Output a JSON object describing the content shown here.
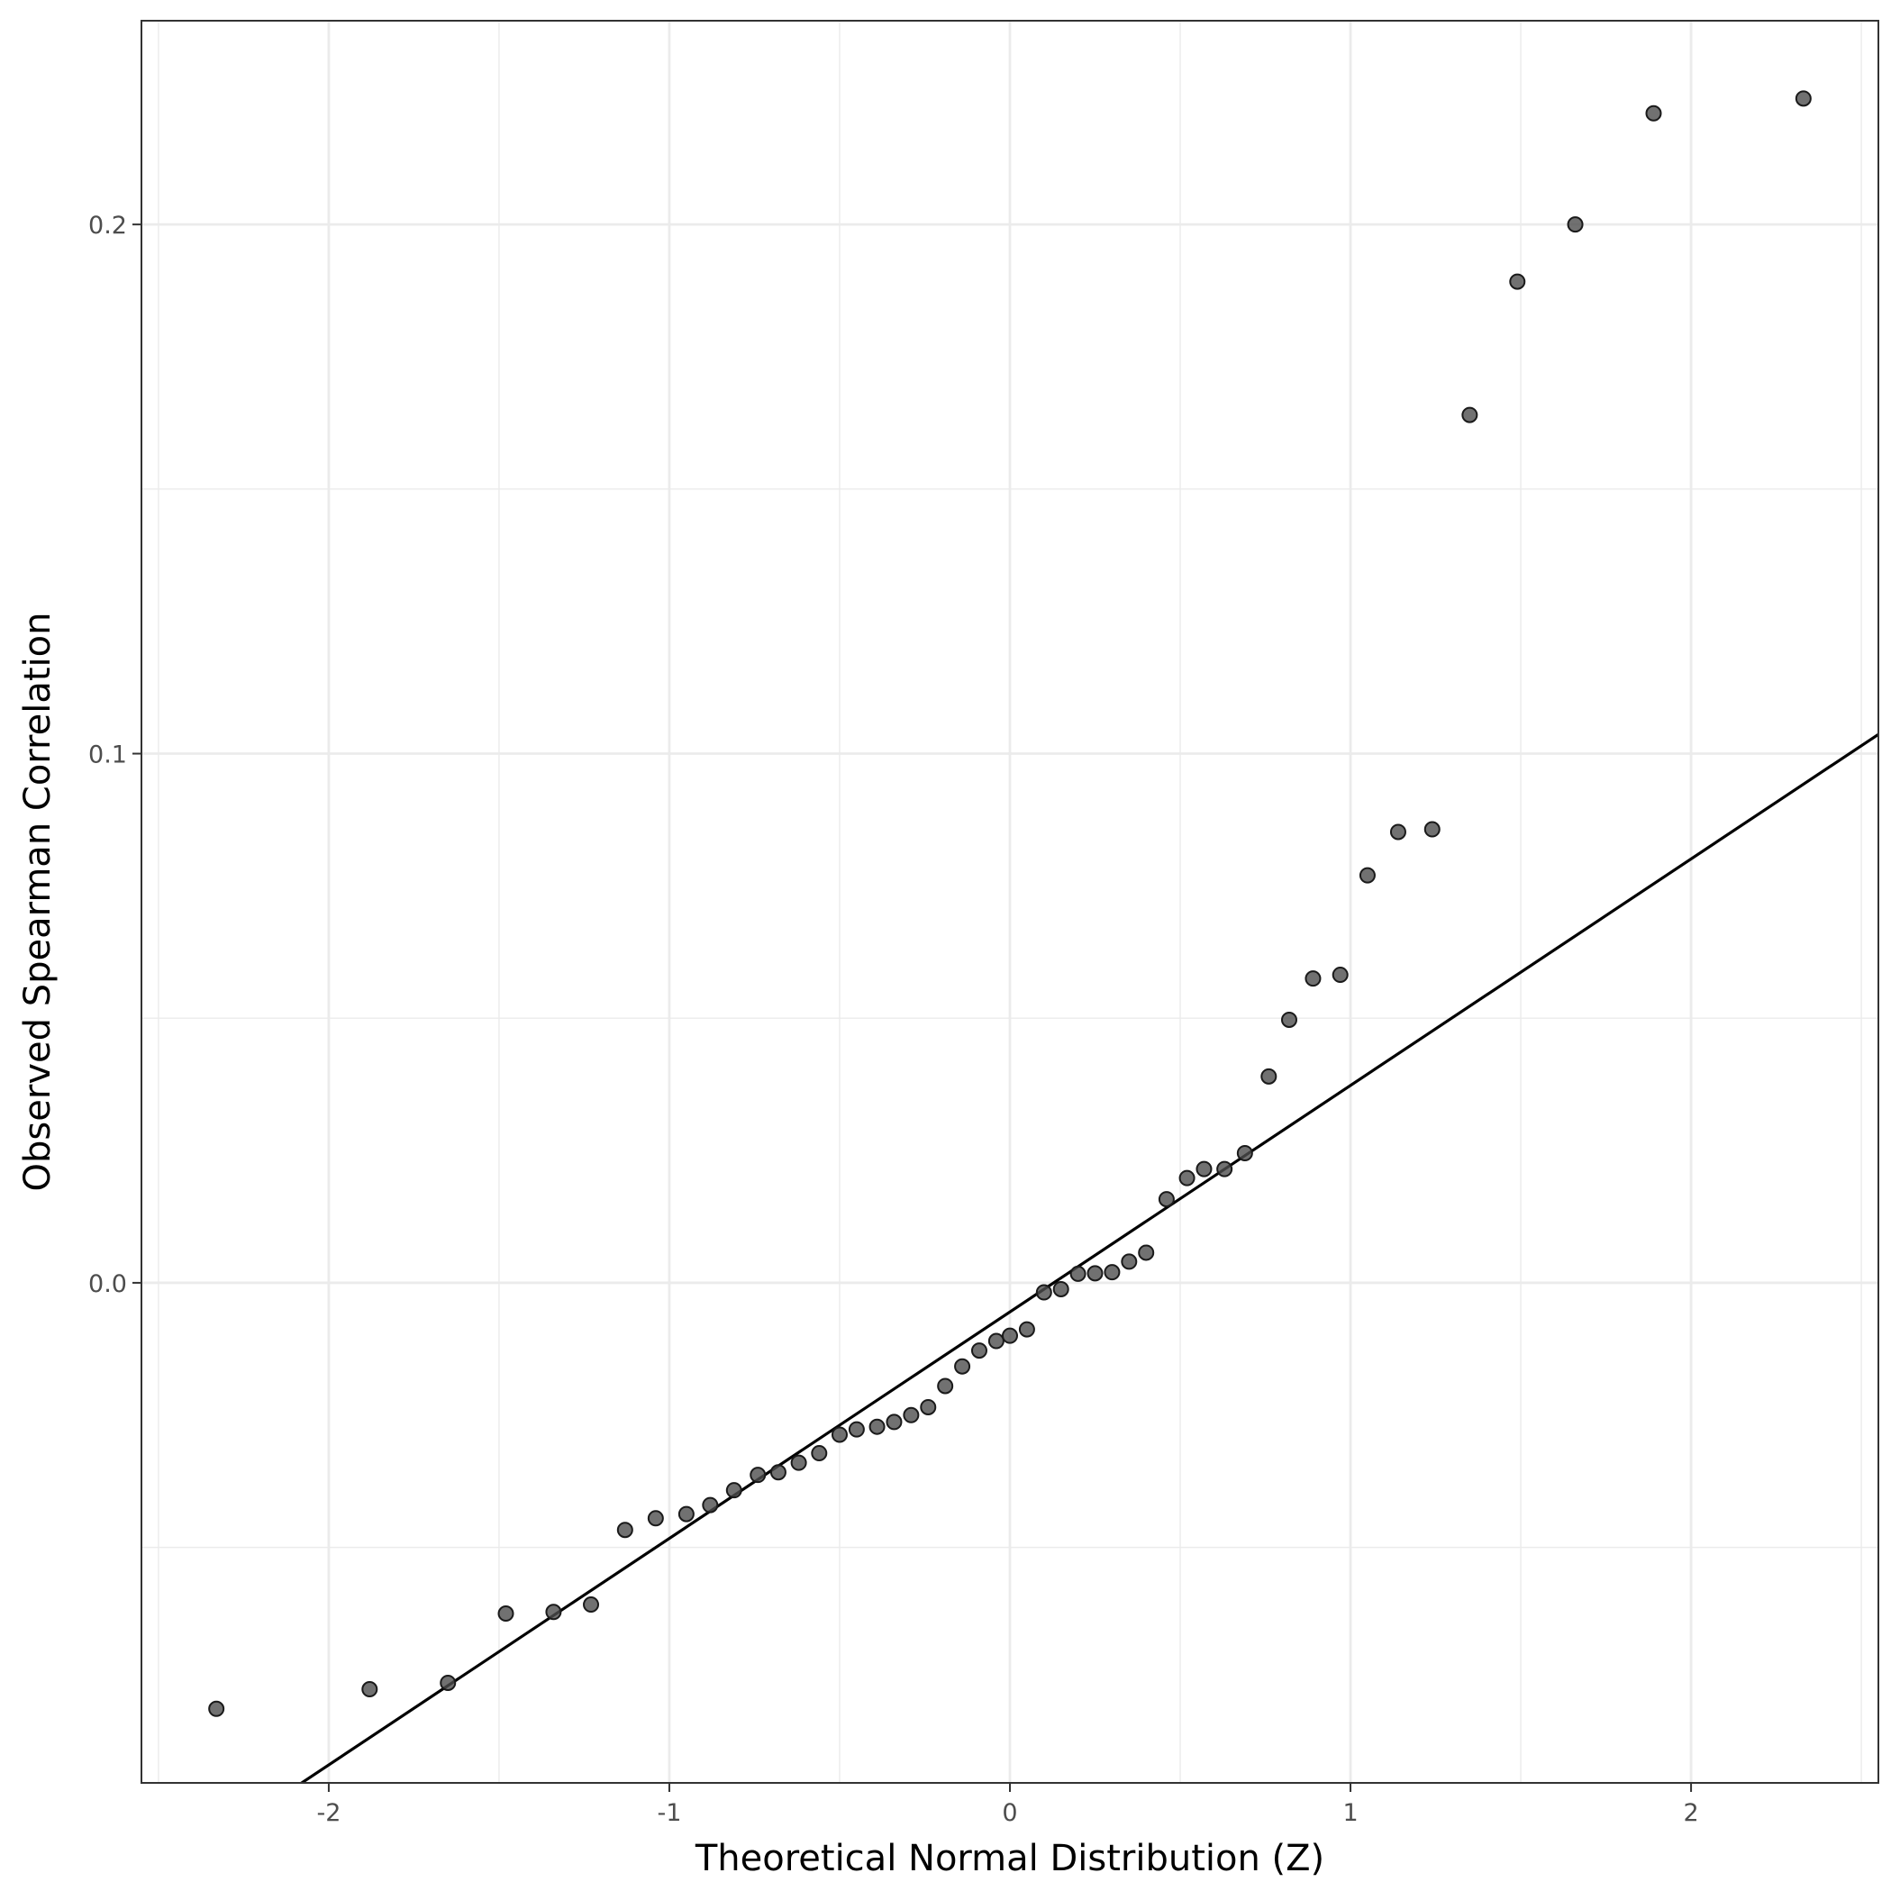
{
  "chart_data": {
    "type": "scatter",
    "title": "",
    "xlabel": "Theoretical Normal Distribution (Z)",
    "ylabel": "Observed Spearman Correlation",
    "xlim": [
      -2.55,
      2.55
    ],
    "ylim": [
      -0.0945,
      0.2385
    ],
    "x_ticks": [
      -2,
      -1,
      0,
      1,
      2
    ],
    "x_tick_labels": [
      "-2",
      "-1",
      "0",
      "1",
      "2"
    ],
    "y_ticks": [
      0.0,
      0.1,
      0.2
    ],
    "y_tick_labels": [
      "0.0",
      "0.1",
      "0.2"
    ],
    "grid": true,
    "legend": "none",
    "point_color": "#4d4d4d",
    "line_color": "#000000",
    "reference_line": {
      "intercept": -0.0055,
      "slope": 0.0428
    },
    "points": [
      {
        "x": -2.33,
        "y": -0.0805
      },
      {
        "x": -1.88,
        "y": -0.0768
      },
      {
        "x": -1.65,
        "y": -0.0756
      },
      {
        "x": -1.48,
        "y": -0.0625
      },
      {
        "x": -1.34,
        "y": -0.0622
      },
      {
        "x": -1.23,
        "y": -0.0608
      },
      {
        "x": -1.13,
        "y": -0.0467
      },
      {
        "x": -1.04,
        "y": -0.0445
      },
      {
        "x": -0.95,
        "y": -0.0437
      },
      {
        "x": -0.88,
        "y": -0.042
      },
      {
        "x": -0.81,
        "y": -0.0392
      },
      {
        "x": -0.74,
        "y": -0.0363
      },
      {
        "x": -0.68,
        "y": -0.0358
      },
      {
        "x": -0.62,
        "y": -0.034
      },
      {
        "x": -0.56,
        "y": -0.0322
      },
      {
        "x": -0.5,
        "y": -0.0287
      },
      {
        "x": -0.45,
        "y": -0.0277
      },
      {
        "x": -0.39,
        "y": -0.0272
      },
      {
        "x": -0.34,
        "y": -0.0263
      },
      {
        "x": -0.29,
        "y": -0.025
      },
      {
        "x": -0.24,
        "y": -0.0235
      },
      {
        "x": -0.19,
        "y": -0.0195
      },
      {
        "x": -0.14,
        "y": -0.0158
      },
      {
        "x": -0.09,
        "y": -0.0128
      },
      {
        "x": -0.04,
        "y": -0.011
      },
      {
        "x": 0.0,
        "y": -0.01
      },
      {
        "x": 0.05,
        "y": -0.0088
      },
      {
        "x": 0.1,
        "y": -0.0018
      },
      {
        "x": 0.15,
        "y": -0.0012
      },
      {
        "x": 0.2,
        "y": 0.0017
      },
      {
        "x": 0.25,
        "y": 0.0018
      },
      {
        "x": 0.3,
        "y": 0.002
      },
      {
        "x": 0.35,
        "y": 0.004
      },
      {
        "x": 0.4,
        "y": 0.0057
      },
      {
        "x": 0.46,
        "y": 0.0158
      },
      {
        "x": 0.52,
        "y": 0.0198
      },
      {
        "x": 0.57,
        "y": 0.0215
      },
      {
        "x": 0.63,
        "y": 0.0215
      },
      {
        "x": 0.69,
        "y": 0.0245
      },
      {
        "x": 0.76,
        "y": 0.039
      },
      {
        "x": 0.82,
        "y": 0.0497
      },
      {
        "x": 0.89,
        "y": 0.0575
      },
      {
        "x": 0.97,
        "y": 0.0582
      },
      {
        "x": 1.05,
        "y": 0.077
      },
      {
        "x": 1.14,
        "y": 0.0852
      },
      {
        "x": 1.24,
        "y": 0.0857
      },
      {
        "x": 1.35,
        "y": 0.164
      },
      {
        "x": 1.49,
        "y": 0.1892
      },
      {
        "x": 1.66,
        "y": 0.2
      },
      {
        "x": 1.89,
        "y": 0.221
      },
      {
        "x": 2.33,
        "y": 0.2238
      }
    ]
  }
}
